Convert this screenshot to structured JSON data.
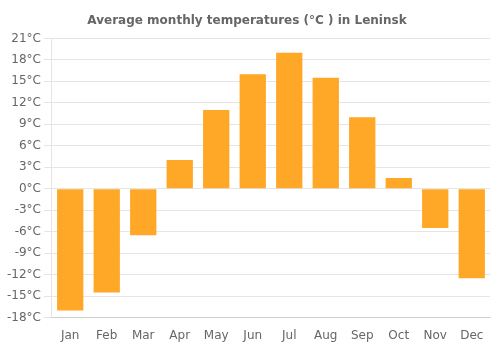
{
  "chart_data": {
    "type": "bar",
    "title": "Average monthly temperatures (°C ) in Leninsk",
    "categories": [
      "Jan",
      "Feb",
      "Mar",
      "Apr",
      "May",
      "Jun",
      "Jul",
      "Aug",
      "Sep",
      "Oct",
      "Nov",
      "Dec"
    ],
    "values": [
      -17,
      -14.5,
      -6.5,
      4,
      11,
      16,
      19,
      15.5,
      10,
      1.5,
      -5.5,
      -12.5
    ],
    "color": "#FFA726",
    "ylim": [
      -18,
      21
    ],
    "yticks": [
      {
        "value": -18,
        "label": "-18°C"
      },
      {
        "value": -15,
        "label": "-15°C"
      },
      {
        "value": -12,
        "label": "-12°C"
      },
      {
        "value": -9,
        "label": "-9°C"
      },
      {
        "value": -6,
        "label": "-6°C"
      },
      {
        "value": -3,
        "label": "-3°C"
      },
      {
        "value": 0,
        "label": "0°C"
      },
      {
        "value": 3,
        "label": "3°C"
      },
      {
        "value": 6,
        "label": "6°C"
      },
      {
        "value": 9,
        "label": "9°C"
      },
      {
        "value": 12,
        "label": "12°C"
      },
      {
        "value": 15,
        "label": "15°C"
      },
      {
        "value": 18,
        "label": "18°C"
      },
      {
        "value": 21,
        "label": "21°C"
      }
    ],
    "grid": true
  }
}
